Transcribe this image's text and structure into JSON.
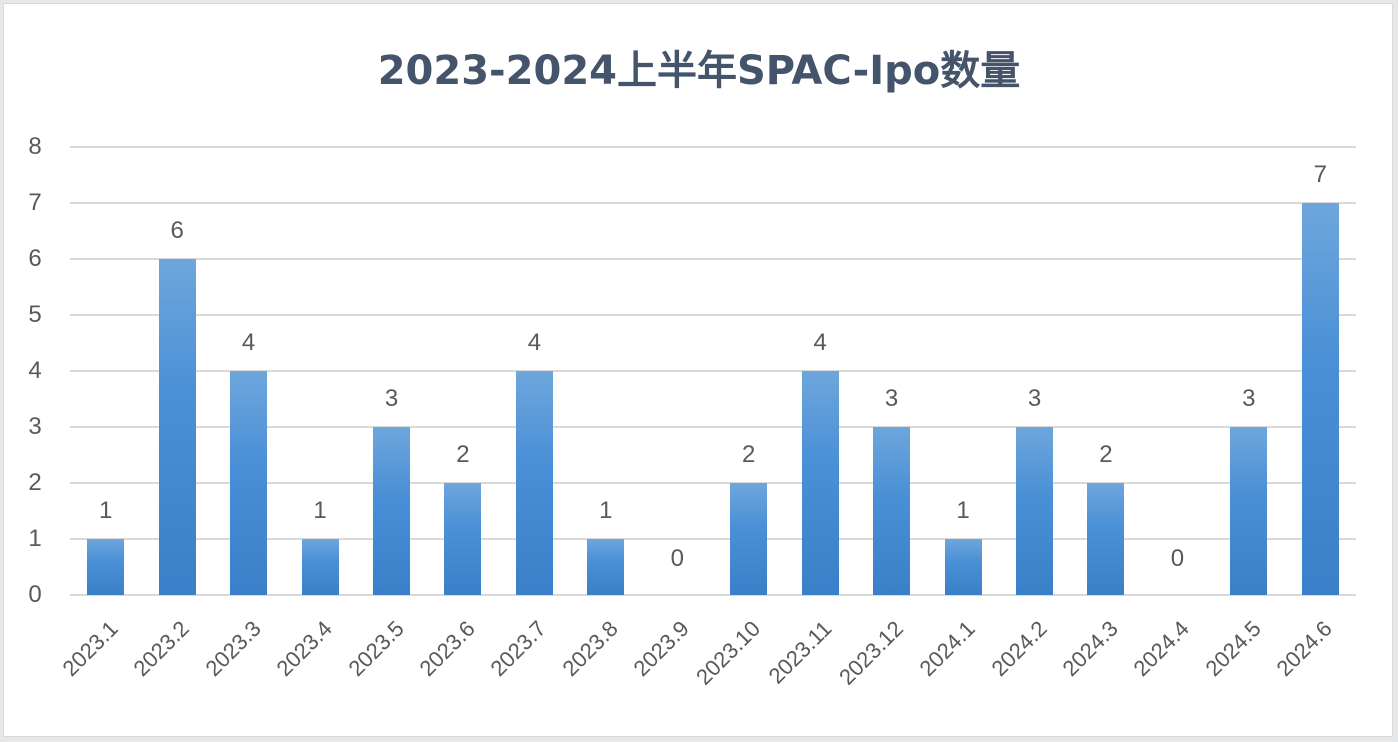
{
  "chart_data": {
    "type": "bar",
    "title": "2023-2024上半年SPAC-Ipo数量",
    "xlabel": "",
    "ylabel": "",
    "ylim": [
      0,
      8
    ],
    "yticks": [
      0,
      1,
      2,
      3,
      4,
      5,
      6,
      7,
      8
    ],
    "grid": true,
    "legend": null,
    "data_labels": true,
    "categories": [
      "2023.1",
      "2023.2",
      "2023.3",
      "2023.4",
      "2023.5",
      "2023.6",
      "2023.7",
      "2023.8",
      "2023.9",
      "2023.10",
      "2023.11",
      "2023.12",
      "2024.1",
      "2024.2",
      "2024.3",
      "2024.4",
      "2024.5",
      "2024.6"
    ],
    "values": [
      1,
      6,
      4,
      1,
      3,
      2,
      4,
      1,
      0,
      2,
      4,
      3,
      1,
      3,
      2,
      0,
      3,
      7
    ],
    "colors": {
      "bar": "#4a90d6",
      "grid": "#d9d9d9",
      "title": "#44546a",
      "text": "#595959"
    }
  }
}
